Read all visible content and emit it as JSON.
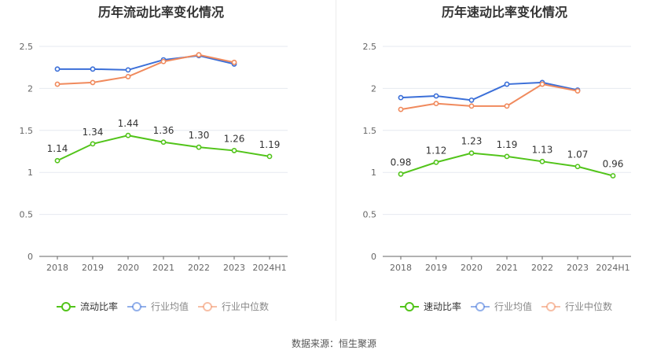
{
  "chart_data": [
    {
      "type": "line",
      "title": "历年流动比率变化情况",
      "categories": [
        "2018",
        "2019",
        "2020",
        "2021",
        "2022",
        "2023",
        "2024H1"
      ],
      "ylim": [
        0,
        2.5
      ],
      "yticks": [
        "0",
        "0.5",
        "1",
        "1.5",
        "2",
        "2.5"
      ],
      "grid": true,
      "legend": "bottom",
      "series": [
        {
          "name": "流动比率",
          "color": "#52c41a",
          "values": [
            1.14,
            1.34,
            1.44,
            1.36,
            1.3,
            1.26,
            1.19
          ],
          "labels": [
            "1.14",
            "1.34",
            "1.44",
            "1.36",
            "1.30",
            "1.26",
            "1.19"
          ]
        },
        {
          "name": "行业均值",
          "color": "#3b6fd8",
          "values": [
            2.23,
            2.23,
            2.22,
            2.34,
            2.39,
            2.29,
            null
          ]
        },
        {
          "name": "行业中位数",
          "color": "#f08a5d",
          "values": [
            2.05,
            2.07,
            2.14,
            2.32,
            2.4,
            2.31,
            null
          ]
        }
      ]
    },
    {
      "type": "line",
      "title": "历年速动比率变化情况",
      "categories": [
        "2018",
        "2019",
        "2020",
        "2021",
        "2022",
        "2023",
        "2024H1"
      ],
      "ylim": [
        0,
        2.5
      ],
      "yticks": [
        "0",
        "0.5",
        "1",
        "1.5",
        "2",
        "2.5"
      ],
      "grid": true,
      "legend": "bottom",
      "series": [
        {
          "name": "速动比率",
          "color": "#52c41a",
          "values": [
            0.98,
            1.12,
            1.23,
            1.19,
            1.13,
            1.07,
            0.96
          ],
          "labels": [
            "0.98",
            "1.12",
            "1.23",
            "1.19",
            "1.13",
            "1.07",
            "0.96"
          ]
        },
        {
          "name": "行业均值",
          "color": "#3b6fd8",
          "values": [
            1.89,
            1.91,
            1.86,
            2.05,
            2.07,
            1.98,
            null
          ]
        },
        {
          "name": "行业中位数",
          "color": "#f08a5d",
          "values": [
            1.75,
            1.82,
            1.79,
            1.79,
            2.05,
            1.97,
            null
          ]
        }
      ]
    }
  ],
  "footer": "数据来源：恒生聚源"
}
